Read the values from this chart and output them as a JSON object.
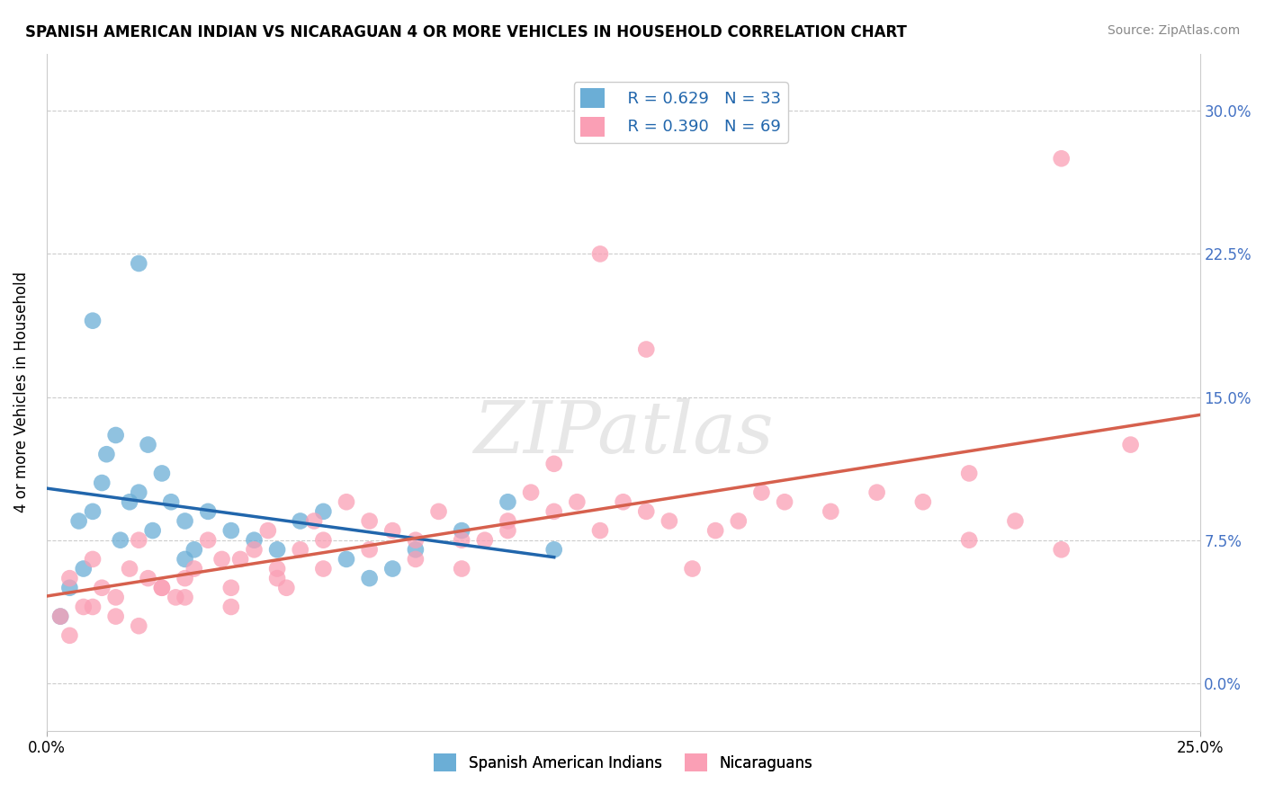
{
  "title": "SPANISH AMERICAN INDIAN VS NICARAGUAN 4 OR MORE VEHICLES IN HOUSEHOLD CORRELATION CHART",
  "source": "Source: ZipAtlas.com",
  "ylabel": "4 or more Vehicles in Household",
  "legend_r1": "R = 0.629",
  "legend_n1": "N = 33",
  "legend_r2": "R = 0.390",
  "legend_n2": "N = 69",
  "color_blue": "#6baed6",
  "color_pink": "#fa9fb5",
  "line_blue": "#2166ac",
  "line_pink": "#d6604d",
  "watermark": "ZIPatlas",
  "xlim": [
    0.0,
    25.0
  ],
  "ylim": [
    -2.5,
    33.0
  ],
  "ytick_vals": [
    0.0,
    7.5,
    15.0,
    22.5,
    30.0
  ],
  "blue_x": [
    0.3,
    0.5,
    0.7,
    0.8,
    1.0,
    1.2,
    1.3,
    1.5,
    1.6,
    1.8,
    2.0,
    2.2,
    2.3,
    2.5,
    2.7,
    3.0,
    3.2,
    3.5,
    4.0,
    4.5,
    5.0,
    5.5,
    6.0,
    6.5,
    7.0,
    7.5,
    8.0,
    9.0,
    10.0,
    11.0,
    1.0,
    2.0,
    3.0
  ],
  "blue_y": [
    3.5,
    5.0,
    8.5,
    6.0,
    9.0,
    10.5,
    12.0,
    13.0,
    7.5,
    9.5,
    10.0,
    12.5,
    8.0,
    11.0,
    9.5,
    8.5,
    7.0,
    9.0,
    8.0,
    7.5,
    7.0,
    8.5,
    9.0,
    6.5,
    5.5,
    6.0,
    7.0,
    8.0,
    9.5,
    7.0,
    19.0,
    22.0,
    6.5
  ],
  "pink_x": [
    0.3,
    0.5,
    0.8,
    1.0,
    1.2,
    1.5,
    1.8,
    2.0,
    2.2,
    2.5,
    2.8,
    3.0,
    3.2,
    3.5,
    3.8,
    4.0,
    4.2,
    4.5,
    4.8,
    5.0,
    5.2,
    5.5,
    5.8,
    6.0,
    6.5,
    7.0,
    7.5,
    8.0,
    8.5,
    9.0,
    9.5,
    10.0,
    10.5,
    11.0,
    11.5,
    12.0,
    12.5,
    13.0,
    13.5,
    14.0,
    14.5,
    15.0,
    15.5,
    16.0,
    17.0,
    18.0,
    19.0,
    20.0,
    21.0,
    22.0,
    0.5,
    1.0,
    1.5,
    2.0,
    2.5,
    3.0,
    4.0,
    5.0,
    6.0,
    7.0,
    8.0,
    9.0,
    10.0,
    11.0,
    12.0,
    13.0,
    20.0,
    22.0,
    23.5
  ],
  "pink_y": [
    3.5,
    5.5,
    4.0,
    6.5,
    5.0,
    4.5,
    6.0,
    7.5,
    5.5,
    5.0,
    4.5,
    5.5,
    6.0,
    7.5,
    6.5,
    5.0,
    6.5,
    7.0,
    8.0,
    6.0,
    5.0,
    7.0,
    8.5,
    7.5,
    9.5,
    8.5,
    8.0,
    7.5,
    9.0,
    7.5,
    7.5,
    8.5,
    10.0,
    9.0,
    9.5,
    8.0,
    9.5,
    9.0,
    8.5,
    6.0,
    8.0,
    8.5,
    10.0,
    9.5,
    9.0,
    10.0,
    9.5,
    11.0,
    8.5,
    7.0,
    2.5,
    4.0,
    3.5,
    3.0,
    5.0,
    4.5,
    4.0,
    5.5,
    6.0,
    7.0,
    6.5,
    6.0,
    8.0,
    11.5,
    22.5,
    17.5,
    7.5,
    27.5,
    12.5
  ]
}
